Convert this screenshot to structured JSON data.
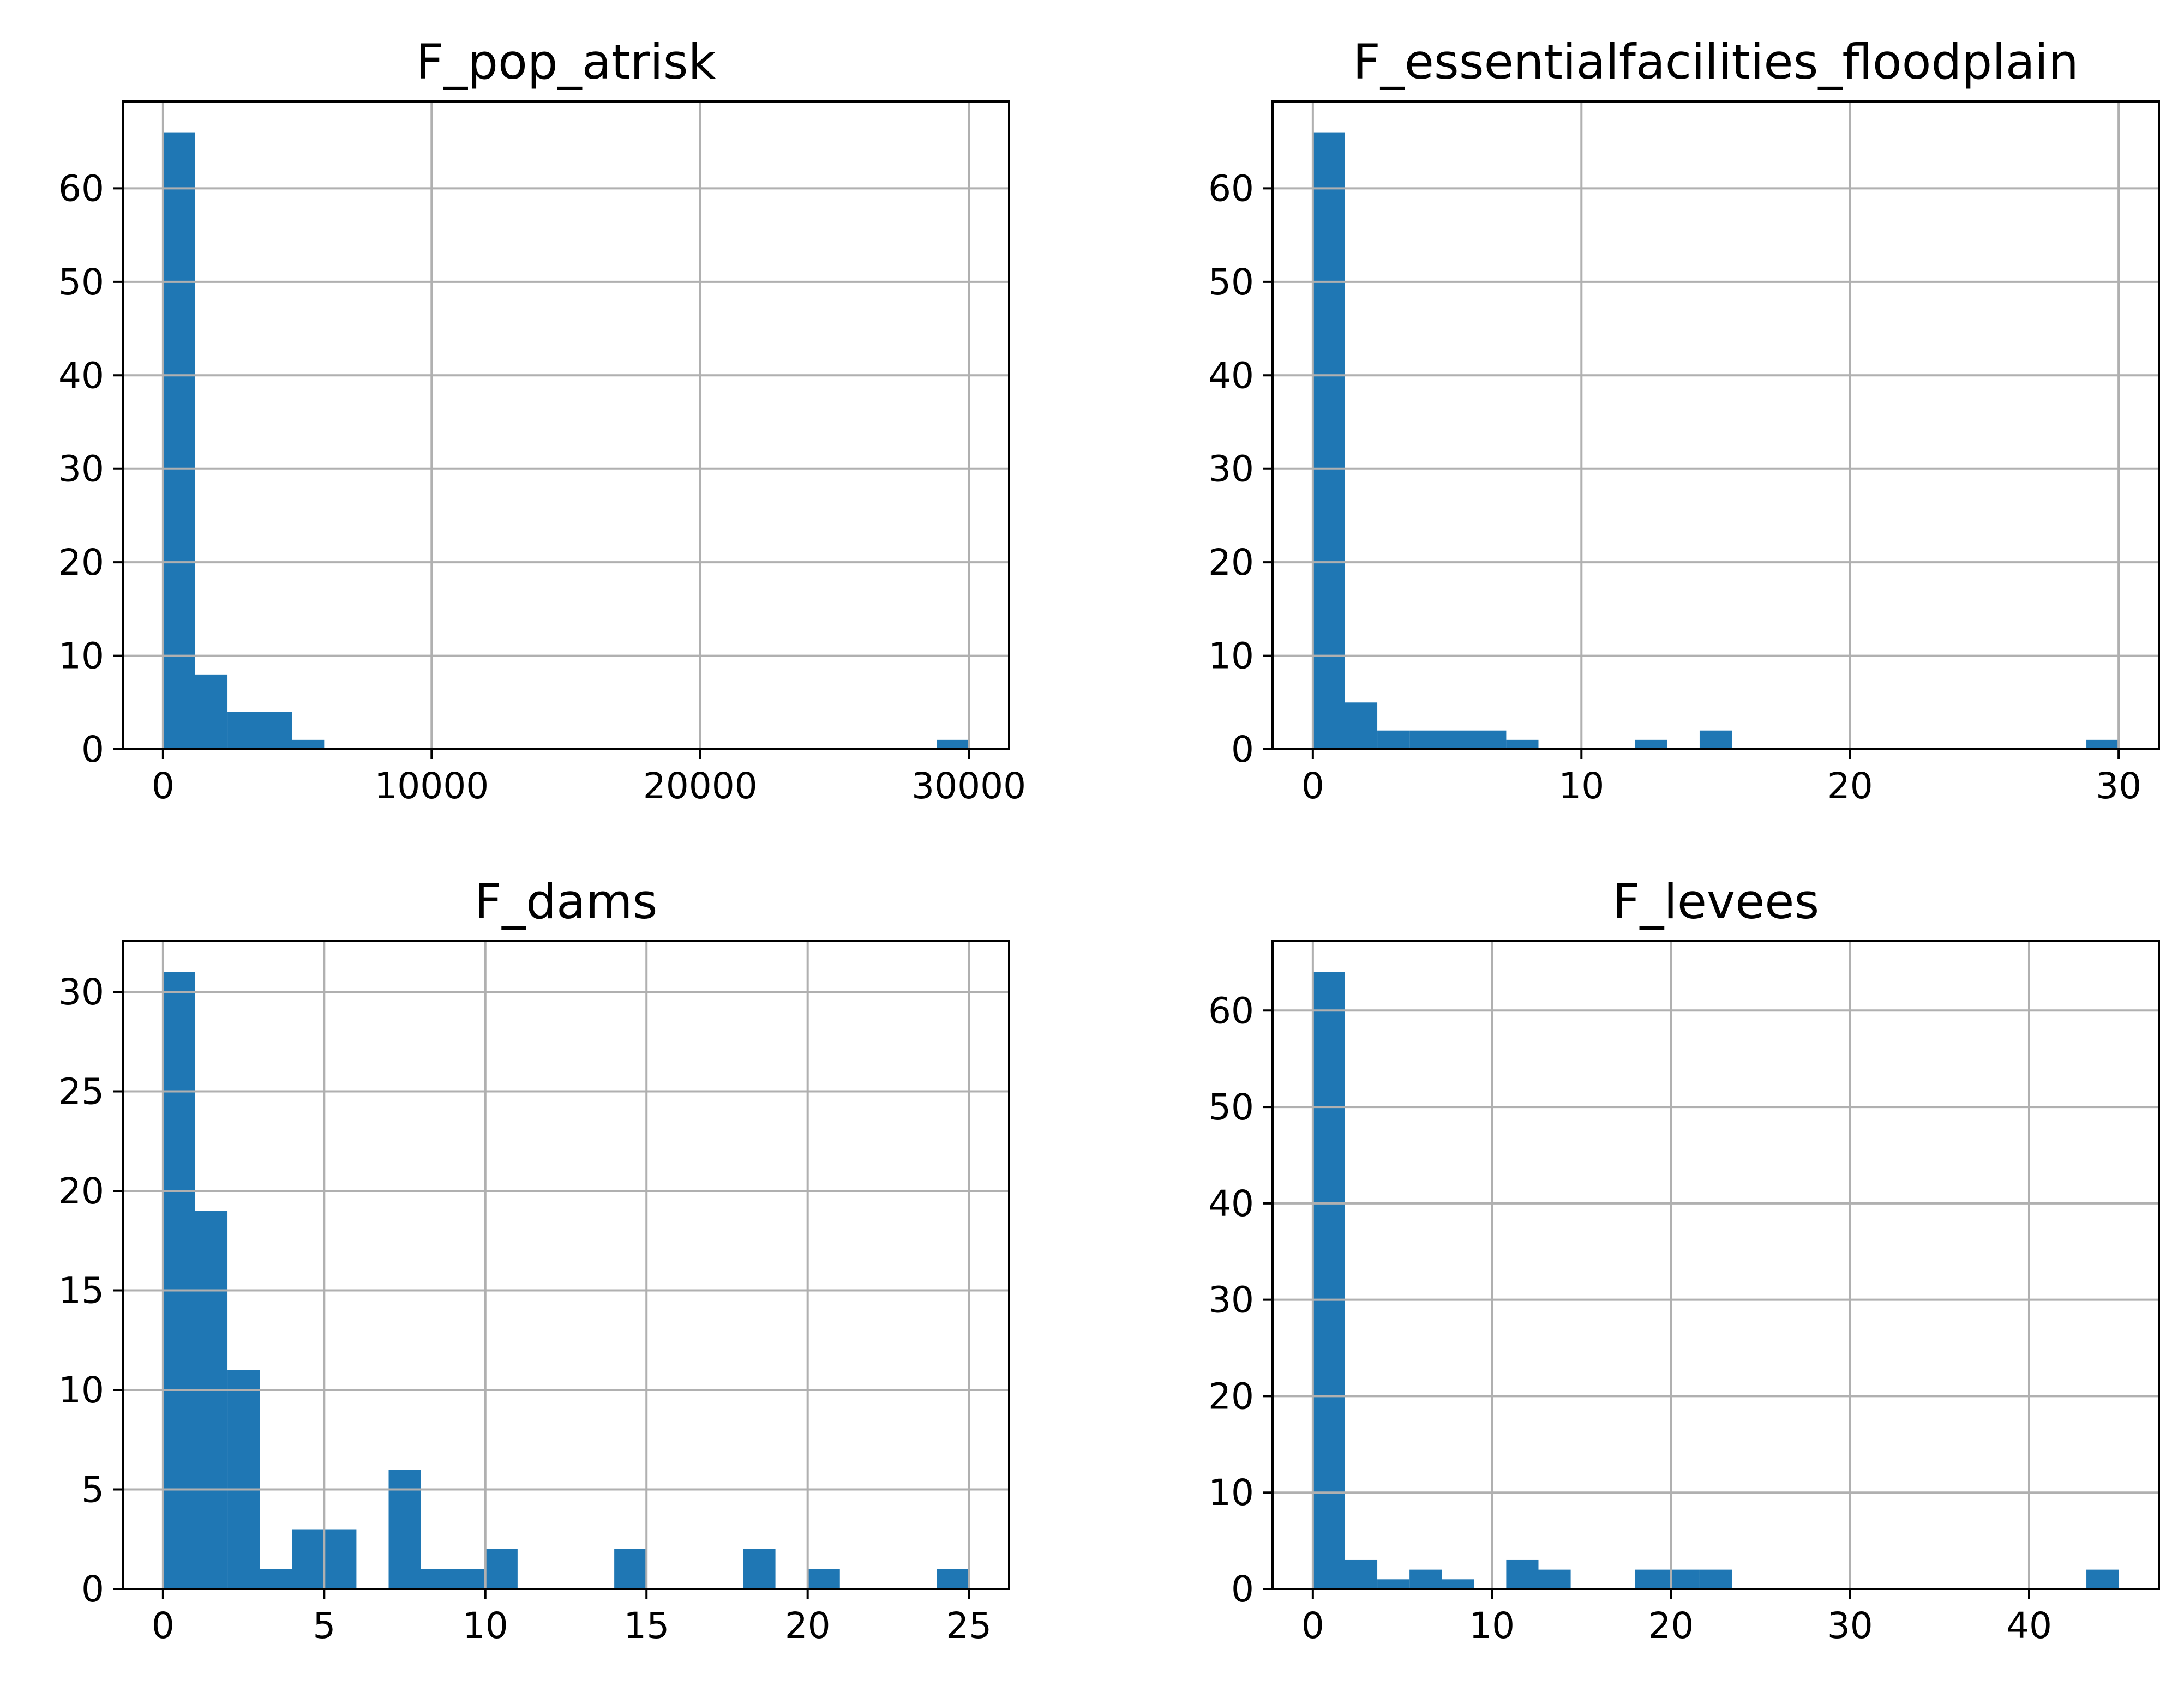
{
  "figure": {
    "bar_color": "#1f77b4",
    "grid_color": "#b0b0b0",
    "axes_color": "#000000",
    "background": "#ffffff"
  },
  "chart_data": [
    {
      "type": "bar",
      "title": "F_pop_atrisk",
      "grid": true,
      "xlim": [
        -1500,
        31500
      ],
      "ylim": [
        0,
        69.3
      ],
      "xticks": [
        0,
        10000,
        20000,
        30000
      ],
      "xtick_labels": [
        "0",
        "10000",
        "20000",
        "30000"
      ],
      "yticks": [
        0,
        10,
        20,
        30,
        40,
        50,
        60
      ],
      "ytick_labels": [
        "0",
        "10",
        "20",
        "30",
        "40",
        "50",
        "60"
      ],
      "bins": [
        [
          0,
          1200
        ],
        [
          1200,
          2400
        ],
        [
          2400,
          3600
        ],
        [
          3600,
          4800
        ],
        [
          4800,
          6000
        ],
        [
          6000,
          7200
        ],
        [
          7200,
          8400
        ],
        [
          8400,
          9600
        ],
        [
          9600,
          10800
        ],
        [
          10800,
          12000
        ],
        [
          12000,
          13200
        ],
        [
          13200,
          14400
        ],
        [
          14400,
          15600
        ],
        [
          15600,
          16800
        ],
        [
          16800,
          18000
        ],
        [
          18000,
          19200
        ],
        [
          19200,
          20400
        ],
        [
          20400,
          21600
        ],
        [
          21600,
          22800
        ],
        [
          22800,
          24000
        ],
        [
          24000,
          25200
        ],
        [
          25200,
          26400
        ],
        [
          26400,
          27600
        ],
        [
          27600,
          28800
        ],
        [
          28800,
          30000
        ]
      ],
      "values": [
        66,
        8,
        4,
        4,
        1,
        0,
        0,
        0,
        0,
        0,
        0,
        0,
        0,
        0,
        0,
        0,
        0,
        0,
        0,
        0,
        0,
        0,
        0,
        0,
        1
      ]
    },
    {
      "type": "bar",
      "title": "F_essentialfacilities_floodplain",
      "grid": true,
      "xlim": [
        -1.5,
        31.5
      ],
      "ylim": [
        0,
        69.3
      ],
      "xticks": [
        0,
        10,
        20,
        30
      ],
      "xtick_labels": [
        "0",
        "10",
        "20",
        "30"
      ],
      "yticks": [
        0,
        10,
        20,
        30,
        40,
        50,
        60
      ],
      "ytick_labels": [
        "0",
        "10",
        "20",
        "30",
        "40",
        "50",
        "60"
      ],
      "bins": [
        [
          0,
          1.2
        ],
        [
          1.2,
          2.4
        ],
        [
          2.4,
          3.6
        ],
        [
          3.6,
          4.8
        ],
        [
          4.8,
          6.0
        ],
        [
          6.0,
          7.2
        ],
        [
          7.2,
          8.4
        ],
        [
          8.4,
          9.6
        ],
        [
          9.6,
          10.8
        ],
        [
          10.8,
          12.0
        ],
        [
          12.0,
          13.2
        ],
        [
          13.2,
          14.4
        ],
        [
          14.4,
          15.6
        ],
        [
          15.6,
          16.8
        ],
        [
          16.8,
          18.0
        ],
        [
          18.0,
          19.2
        ],
        [
          19.2,
          20.4
        ],
        [
          20.4,
          21.6
        ],
        [
          21.6,
          22.8
        ],
        [
          22.8,
          24.0
        ],
        [
          24.0,
          25.2
        ],
        [
          25.2,
          26.4
        ],
        [
          26.4,
          27.6
        ],
        [
          27.6,
          28.8
        ],
        [
          28.8,
          30.0
        ]
      ],
      "values": [
        66,
        5,
        2,
        2,
        2,
        2,
        1,
        0,
        0,
        0,
        1,
        0,
        2,
        0,
        0,
        0,
        0,
        0,
        0,
        0,
        0,
        0,
        0,
        0,
        1
      ]
    },
    {
      "type": "bar",
      "title": "F_dams",
      "grid": true,
      "xlim": [
        -1.25,
        26.25
      ],
      "ylim": [
        0,
        32.55
      ],
      "xticks": [
        0,
        5,
        10,
        15,
        20,
        25
      ],
      "xtick_labels": [
        "0",
        "5",
        "10",
        "15",
        "20",
        "25"
      ],
      "yticks": [
        0,
        5,
        10,
        15,
        20,
        25,
        30
      ],
      "ytick_labels": [
        "0",
        "5",
        "10",
        "15",
        "20",
        "25",
        "30"
      ],
      "bins": [
        [
          0,
          1
        ],
        [
          1,
          2
        ],
        [
          2,
          3
        ],
        [
          3,
          4
        ],
        [
          4,
          5
        ],
        [
          5,
          6
        ],
        [
          6,
          7
        ],
        [
          7,
          8
        ],
        [
          8,
          9
        ],
        [
          9,
          10
        ],
        [
          10,
          11
        ],
        [
          11,
          12
        ],
        [
          12,
          13
        ],
        [
          13,
          14
        ],
        [
          14,
          15
        ],
        [
          15,
          16
        ],
        [
          16,
          17
        ],
        [
          17,
          18
        ],
        [
          18,
          19
        ],
        [
          19,
          20
        ],
        [
          20,
          21
        ],
        [
          21,
          22
        ],
        [
          22,
          23
        ],
        [
          23,
          24
        ],
        [
          24,
          25
        ]
      ],
      "values": [
        31,
        19,
        11,
        1,
        3,
        3,
        0,
        6,
        1,
        1,
        2,
        0,
        0,
        0,
        2,
        0,
        0,
        0,
        2,
        0,
        1,
        0,
        0,
        0,
        1
      ]
    },
    {
      "type": "bar",
      "title": "F_levees",
      "grid": true,
      "xlim": [
        -2.25,
        47.25
      ],
      "ylim": [
        0,
        67.2
      ],
      "xticks": [
        0,
        10,
        20,
        30,
        40
      ],
      "xtick_labels": [
        "0",
        "10",
        "20",
        "30",
        "40"
      ],
      "yticks": [
        0,
        10,
        20,
        30,
        40,
        50,
        60
      ],
      "ytick_labels": [
        "0",
        "10",
        "20",
        "30",
        "40",
        "50",
        "60"
      ],
      "bins": [
        [
          0,
          1.8
        ],
        [
          1.8,
          3.6
        ],
        [
          3.6,
          5.4
        ],
        [
          5.4,
          7.2
        ],
        [
          7.2,
          9.0
        ],
        [
          9.0,
          10.8
        ],
        [
          10.8,
          12.6
        ],
        [
          12.6,
          14.4
        ],
        [
          14.4,
          16.2
        ],
        [
          16.2,
          18.0
        ],
        [
          18.0,
          19.8
        ],
        [
          19.8,
          21.6
        ],
        [
          21.6,
          23.4
        ],
        [
          23.4,
          25.2
        ],
        [
          25.2,
          27.0
        ],
        [
          27.0,
          28.8
        ],
        [
          28.8,
          30.6
        ],
        [
          30.6,
          32.4
        ],
        [
          32.4,
          34.2
        ],
        [
          34.2,
          36.0
        ],
        [
          36.0,
          37.8
        ],
        [
          37.8,
          39.6
        ],
        [
          39.6,
          41.4
        ],
        [
          41.4,
          43.2
        ],
        [
          43.2,
          45.0
        ]
      ],
      "values": [
        64,
        3,
        1,
        2,
        1,
        0,
        3,
        2,
        0,
        0,
        2,
        2,
        2,
        0,
        0,
        0,
        0,
        0,
        0,
        0,
        0,
        0,
        0,
        0,
        2
      ]
    }
  ]
}
